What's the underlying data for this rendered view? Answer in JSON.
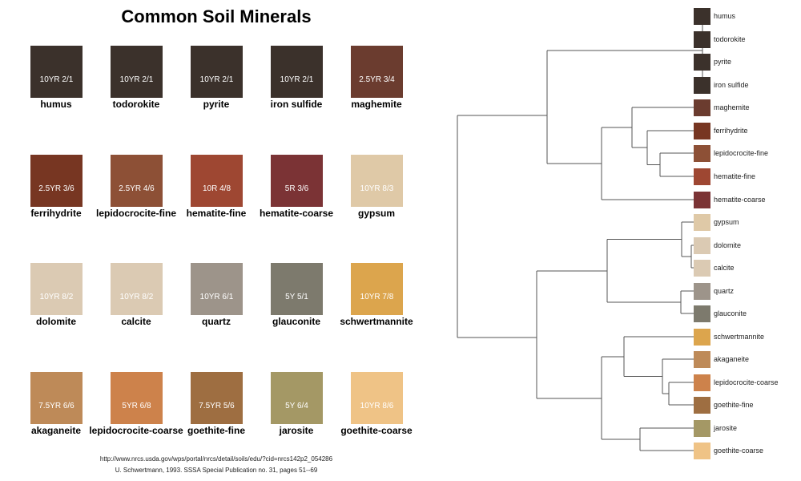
{
  "title": "Common Soil Minerals",
  "minerals": [
    {
      "name": "humus",
      "code": "10YR 2/1",
      "color": "#3b312b"
    },
    {
      "name": "todorokite",
      "code": "10YR 2/1",
      "color": "#3b312b"
    },
    {
      "name": "pyrite",
      "code": "10YR 2/1",
      "color": "#3b312b"
    },
    {
      "name": "iron sulfide",
      "code": "10YR 2/1",
      "color": "#3b312b"
    },
    {
      "name": "maghemite",
      "code": "2.5YR 3/4",
      "color": "#6b3c2f"
    },
    {
      "name": "ferrihydrite",
      "code": "2.5YR 3/6",
      "color": "#773622"
    },
    {
      "name": "lepidocrocite-fine",
      "code": "2.5YR 4/6",
      "color": "#8d5036"
    },
    {
      "name": "hematite-fine",
      "code": "10R 4/8",
      "color": "#9e4732"
    },
    {
      "name": "hematite-coarse",
      "code": "5R 3/6",
      "color": "#7b3335"
    },
    {
      "name": "gypsum",
      "code": "10YR 8/3",
      "color": "#dfc9a7"
    },
    {
      "name": "dolomite",
      "code": "10YR 8/2",
      "color": "#dbcab3"
    },
    {
      "name": "calcite",
      "code": "10YR 8/2",
      "color": "#dbcab3"
    },
    {
      "name": "quartz",
      "code": "10YR 6/1",
      "color": "#9d948a"
    },
    {
      "name": "glauconite",
      "code": "5Y 5/1",
      "color": "#7d7a6d"
    },
    {
      "name": "schwertmannite",
      "code": "10YR 7/8",
      "color": "#dca54d"
    },
    {
      "name": "akaganeite",
      "code": "7.5YR 6/6",
      "color": "#be8a58"
    },
    {
      "name": "lepidocrocite-coarse",
      "code": "5YR 6/8",
      "color": "#cd824b"
    },
    {
      "name": "goethite-fine",
      "code": "7.5YR 5/6",
      "color": "#9e6e41"
    },
    {
      "name": "jarosite",
      "code": "5Y 6/4",
      "color": "#a49865"
    },
    {
      "name": "goethite-coarse",
      "code": "10YR 8/6",
      "color": "#efc386"
    }
  ],
  "footer": {
    "url": "http://www.nrcs.usda.gov/wps/portal/nrcs/detail/soils/edu/?cid=nrcs142p2_054286",
    "citation": "U. Schwertmann, 1993. SSSA Special Publication no. 31, pages 51--69"
  },
  "dendrogram": {
    "leaves": [
      {
        "label": "humus",
        "color": "#3b312b"
      },
      {
        "label": "todorokite",
        "color": "#3b312b"
      },
      {
        "label": "pyrite",
        "color": "#3b312b"
      },
      {
        "label": "iron sulfide",
        "color": "#3b312b"
      },
      {
        "label": "maghemite",
        "color": "#6b3c2f"
      },
      {
        "label": "ferrihydrite",
        "color": "#773622"
      },
      {
        "label": "lepidocrocite-fine",
        "color": "#8d5036"
      },
      {
        "label": "hematite-fine",
        "color": "#9e4732"
      },
      {
        "label": "hematite-coarse",
        "color": "#7b3335"
      },
      {
        "label": "gypsum",
        "color": "#dfc9a7"
      },
      {
        "label": "dolomite",
        "color": "#dbcab3"
      },
      {
        "label": "calcite",
        "color": "#dbcab3"
      },
      {
        "label": "quartz",
        "color": "#9d948a"
      },
      {
        "label": "glauconite",
        "color": "#7d7a6d"
      },
      {
        "label": "schwertmannite",
        "color": "#dca54d"
      },
      {
        "label": "akaganeite",
        "color": "#be8a58"
      },
      {
        "label": "lepidocrocite-coarse",
        "color": "#cd824b"
      },
      {
        "label": "goethite-fine",
        "color": "#9e6e41"
      },
      {
        "label": "jarosite",
        "color": "#a49865"
      },
      {
        "label": "goethite-coarse",
        "color": "#efc386"
      }
    ]
  }
}
